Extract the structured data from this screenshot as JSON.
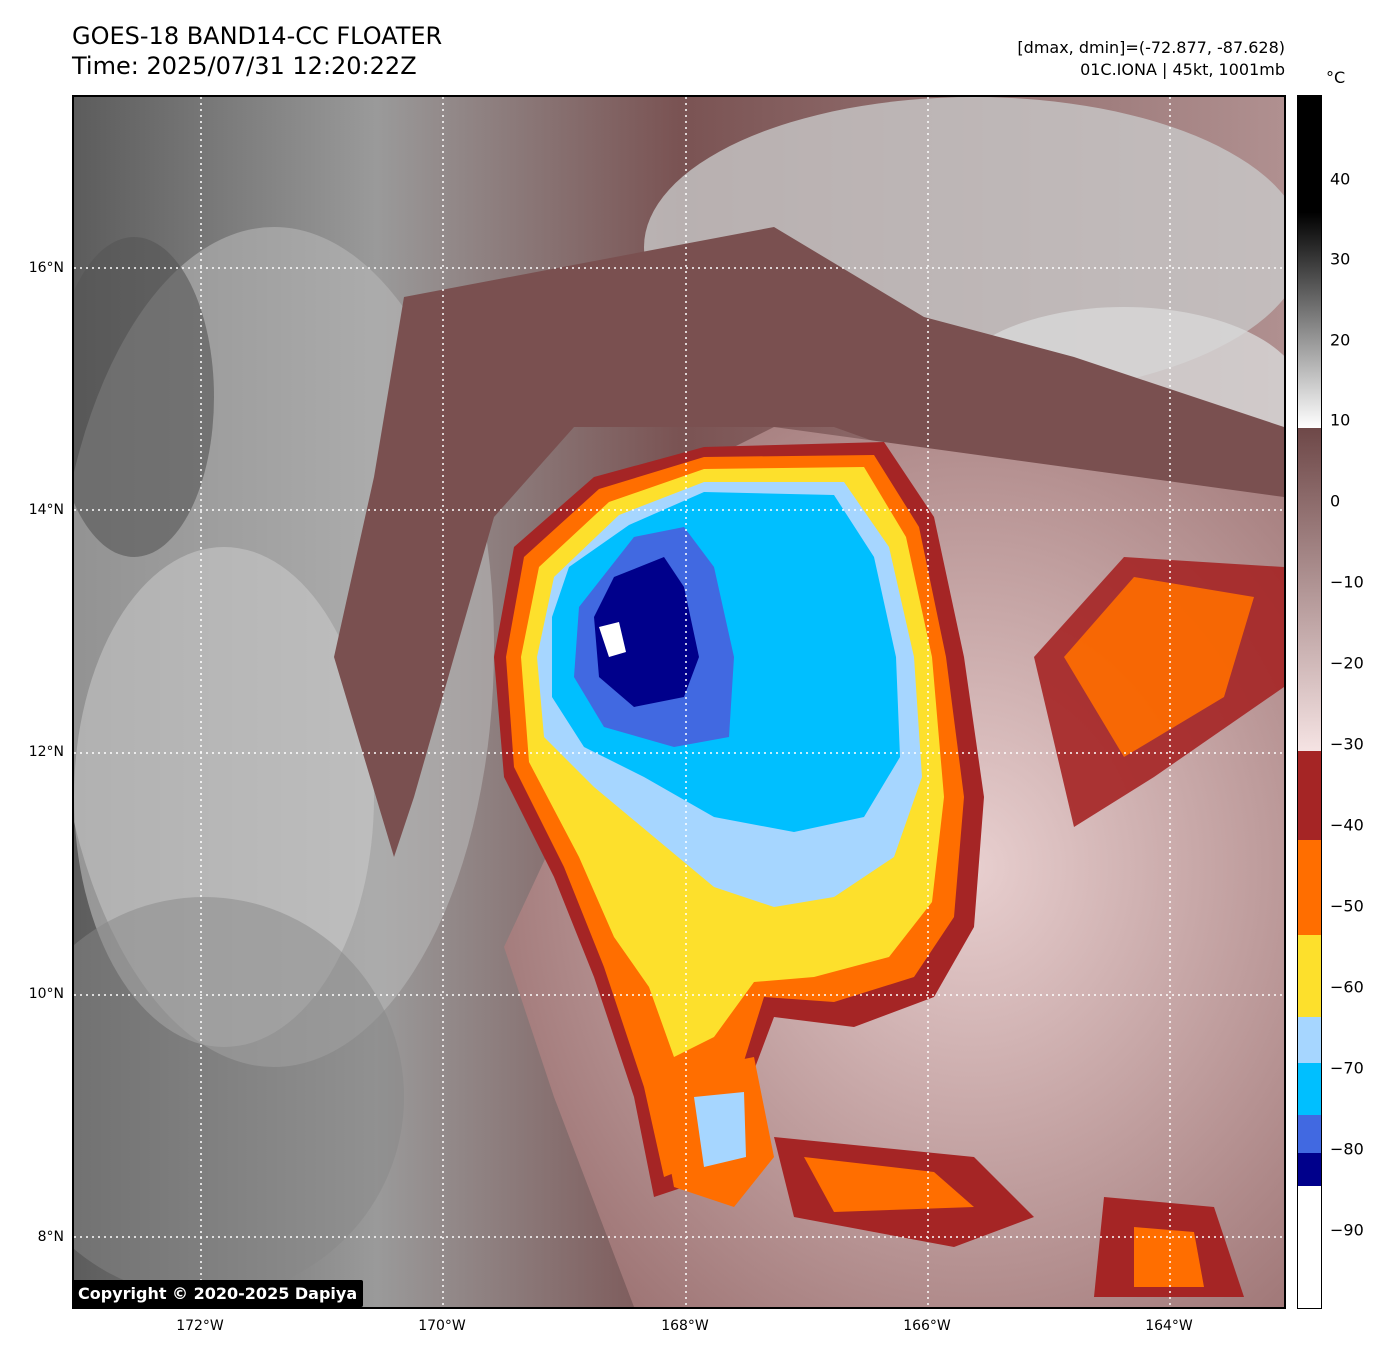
{
  "header": {
    "title_line1": "GOES-18 BAND14-CC FLOATER",
    "title_line2": "Time: 2025/07/31 12:20:22Z",
    "info_line1": "[dmax, dmin]=(-72.877, -87.628)",
    "info_line2": "01C.IONA | 45kt, 1001mb"
  },
  "map": {
    "lon_labels": [
      "172°W",
      "170°W",
      "168°W",
      "166°W",
      "164°W"
    ],
    "lat_labels": [
      "16°N",
      "14°N",
      "12°N",
      "10°N",
      "8°N"
    ],
    "grid": "dotted white",
    "storm_name": "01C.IONA"
  },
  "copyright": "Copyright © 2020-2025 Dapiya",
  "colorbar": {
    "unit": "°C",
    "tick_labels": [
      "40",
      "30",
      "20",
      "10",
      "0",
      "−10",
      "−20",
      "−30",
      "−40",
      "−50",
      "−60",
      "−70",
      "−80",
      "−90"
    ],
    "range": [
      -100,
      50
    ],
    "palette": {
      "warm_gray": "#e8e8e8",
      "brown": "#7a5050",
      "pink": "#f0dede",
      "dark_red": "#a52525",
      "orange": "#ff6e00",
      "yellow": "#fde02c",
      "light_blue": "#a6d6ff",
      "cyan": "#00bfff",
      "royal_blue": "#4169e1",
      "navy": "#00008b",
      "white": "#ffffff"
    }
  }
}
